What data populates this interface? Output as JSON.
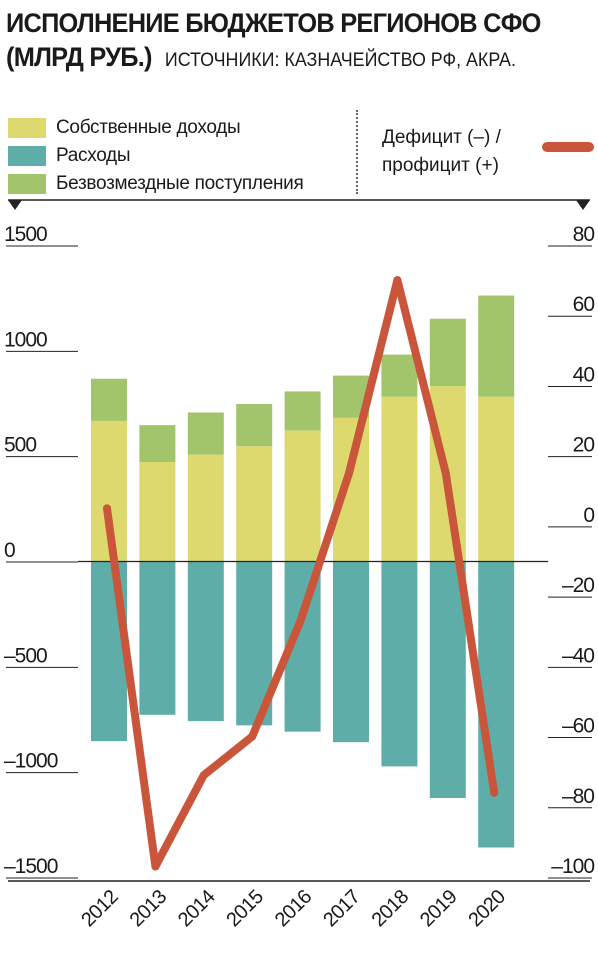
{
  "title": "ИСПОЛНЕНИЕ БЮДЖЕТОВ РЕГИОНОВ СФО (МЛРД РУБ.)",
  "source": "ИСТОЧНИКИ: КАЗНАЧЕЙСТВО РФ, АКРА.",
  "colors": {
    "own_revenue": "#ddd96f",
    "expenses": "#5fada8",
    "transfers": "#a2c46b",
    "deficit_line": "#c9553a"
  },
  "chart_data": {
    "type": "bar",
    "categories": [
      "2012",
      "2013",
      "2014",
      "2015",
      "2016",
      "2017",
      "2018",
      "2019",
      "2020"
    ],
    "series": [
      {
        "name": "Собственные доходы",
        "type": "bar",
        "axis": "left",
        "stack": "revenue",
        "values": [
          665,
          470,
          505,
          545,
          620,
          680,
          780,
          830,
          780
        ]
      },
      {
        "name": "Безвозмездные поступления",
        "type": "bar",
        "axis": "left",
        "stack": "revenue",
        "values": [
          200,
          175,
          200,
          200,
          185,
          200,
          200,
          320,
          480
        ]
      },
      {
        "name": "Расходы",
        "type": "bar",
        "axis": "left",
        "values": [
          -855,
          -730,
          -760,
          -780,
          -810,
          -860,
          -975,
          -1125,
          -1360
        ]
      },
      {
        "name": "Дефицит (–) / профицит (+)",
        "type": "line",
        "axis": "right",
        "values": [
          5,
          -97,
          -71,
          -60,
          -27,
          15,
          70,
          15,
          -76
        ]
      }
    ],
    "y_left": {
      "min": -1500,
      "max": 1500,
      "ticks": [
        "1500",
        "1000",
        "500",
        "0",
        "–500",
        "–1000",
        "–1500"
      ]
    },
    "y_right": {
      "min": -100,
      "max": 80,
      "ticks": [
        "80",
        "60",
        "40",
        "20",
        "0",
        "–20",
        "–40",
        "–60",
        "–80",
        "–100"
      ]
    },
    "legend": {
      "position": "top"
    }
  }
}
